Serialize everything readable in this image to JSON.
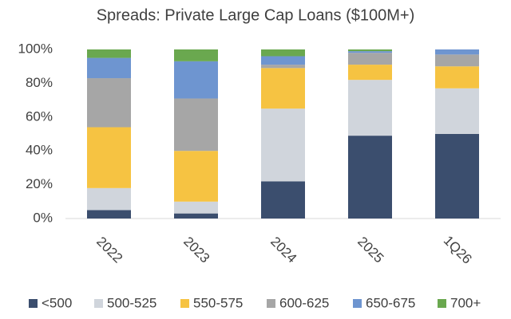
{
  "chart_data": {
    "type": "stacked_bar",
    "title": "Spreads: Private Large Cap Loans ($100M+)",
    "categories": [
      "2022",
      "2023",
      "2024",
      "2025",
      "1Q26"
    ],
    "series": [
      {
        "name": "<500",
        "color": "#3b4e6e",
        "values": [
          5,
          3,
          22,
          49,
          50
        ]
      },
      {
        "name": "500-525",
        "color": "#d0d5dc",
        "values": [
          13,
          7,
          43,
          33,
          27
        ]
      },
      {
        "name": "550-575",
        "color": "#f6c342",
        "values": [
          36,
          30,
          24,
          9,
          13
        ]
      },
      {
        "name": "600-625",
        "color": "#a6a6a6",
        "values": [
          29,
          31,
          2,
          7,
          7
        ]
      },
      {
        "name": "650-675",
        "color": "#6e95d0",
        "values": [
          12,
          22,
          5,
          1,
          3
        ]
      },
      {
        "name": "700+",
        "color": "#6aa84f",
        "values": [
          5,
          7,
          4,
          1,
          0
        ]
      }
    ],
    "ylim": [
      0,
      100
    ],
    "yticks": [
      {
        "value": 0,
        "label": "0%"
      },
      {
        "value": 20,
        "label": "20%"
      },
      {
        "value": 40,
        "label": "40%"
      },
      {
        "value": 60,
        "label": "60%"
      },
      {
        "value": 80,
        "label": "80%"
      },
      {
        "value": 100,
        "label": "100%"
      }
    ],
    "grid": false,
    "legend": "bottom"
  }
}
